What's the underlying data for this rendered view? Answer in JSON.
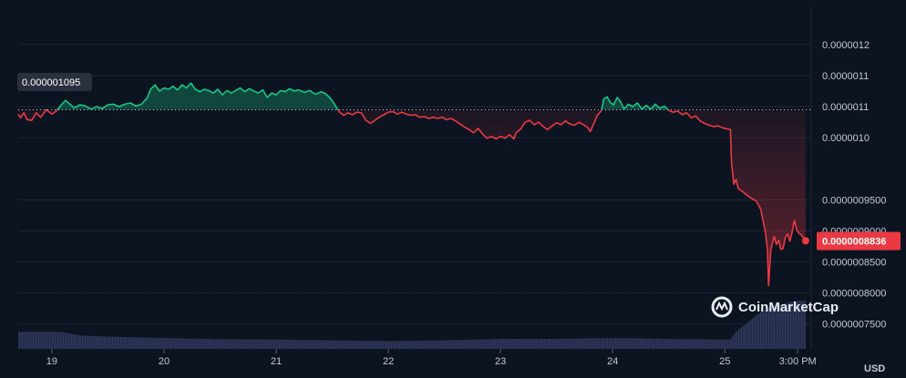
{
  "chart_data": {
    "type": "line",
    "unit": "USD",
    "brand": "CoinMarketCap",
    "reference_price_label": "0.000001095",
    "reference_price": 1.095e-06,
    "current_price_label": "0.0000008836",
    "current_price": 8.836e-07,
    "y_ticks": [
      "0.0000012",
      "0.0000011",
      "0.0000011",
      "0.0000010",
      "0.0000009500",
      "0.0000009000",
      "0.0000008500",
      "0.0000008000",
      "0.0000007500"
    ],
    "y_tick_values": [
      1.2e-06,
      1.15e-06,
      1.1e-06,
      1.05e-06,
      9.5e-07,
      9e-07,
      8.5e-07,
      8e-07,
      7.5e-07
    ],
    "x_ticks": [
      "19",
      "20",
      "21",
      "22",
      "23",
      "24",
      "25",
      "3:00 PM"
    ],
    "x_tick_positions": [
      0,
      1,
      2,
      3,
      4,
      5,
      6,
      6.65
    ],
    "xlim": [
      -0.3,
      6.77
    ],
    "ylim": [
      7.1e-07,
      1.26e-06
    ],
    "grid": true,
    "colors": {
      "up": "#16c784",
      "down": "#ea3943",
      "volume": "#353d63",
      "background": "#0d1421",
      "grid": "#1e2433"
    },
    "price_points": [
      [
        -0.3,
        1.088e-06
      ],
      [
        -0.28,
        1.082e-06
      ],
      [
        -0.25,
        1.09e-06
      ],
      [
        -0.22,
        1.079e-06
      ],
      [
        -0.18,
        1.078e-06
      ],
      [
        -0.14,
        1.09e-06
      ],
      [
        -0.1,
        1.083e-06
      ],
      [
        -0.05,
        1.095e-06
      ],
      [
        0.0,
        1.088e-06
      ],
      [
        0.04,
        1.093e-06
      ],
      [
        0.08,
        1.102e-06
      ],
      [
        0.12,
        1.11e-06
      ],
      [
        0.16,
        1.104e-06
      ],
      [
        0.2,
        1.098e-06
      ],
      [
        0.25,
        1.103e-06
      ],
      [
        0.3,
        1.101e-06
      ],
      [
        0.35,
        1.096e-06
      ],
      [
        0.4,
        1.1e-06
      ],
      [
        0.45,
        1.097e-06
      ],
      [
        0.5,
        1.103e-06
      ],
      [
        0.55,
        1.104e-06
      ],
      [
        0.6,
        1.1e-06
      ],
      [
        0.65,
        1.104e-06
      ],
      [
        0.7,
        1.106e-06
      ],
      [
        0.75,
        1.101e-06
      ],
      [
        0.8,
        1.104e-06
      ],
      [
        0.85,
        1.114e-06
      ],
      [
        0.88,
        1.128e-06
      ],
      [
        0.92,
        1.135e-06
      ],
      [
        0.96,
        1.125e-06
      ],
      [
        1.0,
        1.13e-06
      ],
      [
        1.04,
        1.128e-06
      ],
      [
        1.08,
        1.133e-06
      ],
      [
        1.12,
        1.127e-06
      ],
      [
        1.16,
        1.135e-06
      ],
      [
        1.2,
        1.13e-06
      ],
      [
        1.24,
        1.138e-06
      ],
      [
        1.28,
        1.128e-06
      ],
      [
        1.32,
        1.124e-06
      ],
      [
        1.36,
        1.128e-06
      ],
      [
        1.4,
        1.126e-06
      ],
      [
        1.44,
        1.122e-06
      ],
      [
        1.48,
        1.128e-06
      ],
      [
        1.52,
        1.119e-06
      ],
      [
        1.56,
        1.126e-06
      ],
      [
        1.6,
        1.122e-06
      ],
      [
        1.64,
        1.126e-06
      ],
      [
        1.68,
        1.13e-06
      ],
      [
        1.72,
        1.124e-06
      ],
      [
        1.76,
        1.129e-06
      ],
      [
        1.8,
        1.125e-06
      ],
      [
        1.84,
        1.122e-06
      ],
      [
        1.88,
        1.127e-06
      ],
      [
        1.92,
        1.115e-06
      ],
      [
        1.96,
        1.122e-06
      ],
      [
        2.0,
        1.119e-06
      ],
      [
        2.04,
        1.126e-06
      ],
      [
        2.08,
        1.124e-06
      ],
      [
        2.12,
        1.129e-06
      ],
      [
        2.16,
        1.125e-06
      ],
      [
        2.2,
        1.127e-06
      ],
      [
        2.25,
        1.123e-06
      ],
      [
        2.3,
        1.126e-06
      ],
      [
        2.35,
        1.12e-06
      ],
      [
        2.4,
        1.124e-06
      ],
      [
        2.44,
        1.121e-06
      ],
      [
        2.48,
        1.114e-06
      ],
      [
        2.52,
        1.104e-06
      ],
      [
        2.56,
        1.092e-06
      ],
      [
        2.6,
        1.086e-06
      ],
      [
        2.64,
        1.09e-06
      ],
      [
        2.68,
        1.087e-06
      ],
      [
        2.72,
        1.091e-06
      ],
      [
        2.76,
        1.09e-06
      ],
      [
        2.8,
        1.078e-06
      ],
      [
        2.84,
        1.073e-06
      ],
      [
        2.88,
        1.078e-06
      ],
      [
        2.92,
        1.083e-06
      ],
      [
        2.96,
        1.087e-06
      ],
      [
        3.0,
        1.091e-06
      ],
      [
        3.04,
        1.092e-06
      ],
      [
        3.08,
        1.088e-06
      ],
      [
        3.12,
        1.091e-06
      ],
      [
        3.16,
        1.088e-06
      ],
      [
        3.2,
        1.086e-06
      ],
      [
        3.24,
        1.087e-06
      ],
      [
        3.28,
        1.083e-06
      ],
      [
        3.32,
        1.084e-06
      ],
      [
        3.36,
        1.081e-06
      ],
      [
        3.4,
        1.083e-06
      ],
      [
        3.44,
        1.081e-06
      ],
      [
        3.48,
        1.083e-06
      ],
      [
        3.52,
        1.079e-06
      ],
      [
        3.56,
        1.081e-06
      ],
      [
        3.6,
        1.077e-06
      ],
      [
        3.64,
        1.072e-06
      ],
      [
        3.68,
        1.067e-06
      ],
      [
        3.72,
        1.063e-06
      ],
      [
        3.76,
        1.058e-06
      ],
      [
        3.8,
        1.065e-06
      ],
      [
        3.84,
        1.056e-06
      ],
      [
        3.88,
        1.049e-06
      ],
      [
        3.92,
        1.052e-06
      ],
      [
        3.96,
        1.048e-06
      ],
      [
        4.0,
        1.052e-06
      ],
      [
        4.04,
        1.049e-06
      ],
      [
        4.08,
        1.055e-06
      ],
      [
        4.12,
        1.048e-06
      ],
      [
        4.14,
        1.058e-06
      ],
      [
        4.18,
        1.064e-06
      ],
      [
        4.22,
        1.075e-06
      ],
      [
        4.26,
        1.078e-06
      ],
      [
        4.3,
        1.071e-06
      ],
      [
        4.34,
        1.075e-06
      ],
      [
        4.38,
        1.068e-06
      ],
      [
        4.42,
        1.063e-06
      ],
      [
        4.46,
        1.069e-06
      ],
      [
        4.5,
        1.074e-06
      ],
      [
        4.54,
        1.071e-06
      ],
      [
        4.58,
        1.077e-06
      ],
      [
        4.62,
        1.072e-06
      ],
      [
        4.66,
        1.07e-06
      ],
      [
        4.7,
        1.075e-06
      ],
      [
        4.74,
        1.071e-06
      ],
      [
        4.78,
        1.066e-06
      ],
      [
        4.8,
        1.06e-06
      ],
      [
        4.83,
        1.072e-06
      ],
      [
        4.86,
        1.085e-06
      ],
      [
        4.9,
        1.094e-06
      ],
      [
        4.92,
        1.112e-06
      ],
      [
        4.95,
        1.116e-06
      ],
      [
        4.98,
        1.106e-06
      ],
      [
        5.01,
        1.103e-06
      ],
      [
        5.04,
        1.115e-06
      ],
      [
        5.07,
        1.108e-06
      ],
      [
        5.1,
        1.096e-06
      ],
      [
        5.14,
        1.104e-06
      ],
      [
        5.18,
        1.1e-06
      ],
      [
        5.22,
        1.106e-06
      ],
      [
        5.26,
        1.096e-06
      ],
      [
        5.3,
        1.102e-06
      ],
      [
        5.34,
        1.096e-06
      ],
      [
        5.38,
        1.104e-06
      ],
      [
        5.42,
        1.097e-06
      ],
      [
        5.46,
        1.101e-06
      ],
      [
        5.5,
        1.094e-06
      ],
      [
        5.54,
        1.091e-06
      ],
      [
        5.58,
        1.093e-06
      ],
      [
        5.62,
        1.087e-06
      ],
      [
        5.66,
        1.09e-06
      ],
      [
        5.7,
        1.082e-06
      ],
      [
        5.74,
        1.085e-06
      ],
      [
        5.78,
        1.077e-06
      ],
      [
        5.82,
        1.073e-06
      ],
      [
        5.86,
        1.07e-06
      ],
      [
        5.9,
        1.068e-06
      ],
      [
        5.94,
        1.069e-06
      ],
      [
        5.98,
        1.066e-06
      ],
      [
        6.02,
        1.064e-06
      ],
      [
        6.05,
        1.063e-06
      ],
      [
        6.06,
        1.01e-06
      ],
      [
        6.08,
        9.75e-07
      ],
      [
        6.1,
        9.83e-07
      ],
      [
        6.12,
        9.68e-07
      ],
      [
        6.16,
        9.63e-07
      ],
      [
        6.2,
        9.57e-07
      ],
      [
        6.24,
        9.52e-07
      ],
      [
        6.28,
        9.48e-07
      ],
      [
        6.32,
        9.35e-07
      ],
      [
        6.34,
        9.17e-07
      ],
      [
        6.36,
        9e-07
      ],
      [
        6.38,
        8.7e-07
      ],
      [
        6.39,
        8.12e-07
      ],
      [
        6.41,
        8.7e-07
      ],
      [
        6.44,
        8.91e-07
      ],
      [
        6.46,
        8.78e-07
      ],
      [
        6.48,
        8.85e-07
      ],
      [
        6.5,
        8.7e-07
      ],
      [
        6.52,
        8.72e-07
      ],
      [
        6.54,
        8.9e-07
      ],
      [
        6.56,
        8.95e-07
      ],
      [
        6.58,
        8.83e-07
      ],
      [
        6.6,
        8.98e-07
      ],
      [
        6.62,
        9.17e-07
      ],
      [
        6.64,
        9.02e-07
      ],
      [
        6.66,
        8.96e-07
      ],
      [
        6.68,
        8.94e-07
      ],
      [
        6.7,
        8.88e-07
      ],
      [
        6.72,
        8.84e-07
      ]
    ],
    "volume_points": [
      [
        -0.3,
        0.92
      ],
      [
        0.0,
        0.92
      ],
      [
        0.1,
        0.9
      ],
      [
        0.25,
        0.72
      ],
      [
        0.5,
        0.66
      ],
      [
        1.0,
        0.58
      ],
      [
        1.5,
        0.52
      ],
      [
        2.0,
        0.5
      ],
      [
        2.5,
        0.46
      ],
      [
        3.0,
        0.42
      ],
      [
        3.5,
        0.46
      ],
      [
        4.0,
        0.54
      ],
      [
        4.5,
        0.54
      ],
      [
        5.0,
        0.58
      ],
      [
        5.5,
        0.54
      ],
      [
        6.0,
        0.5
      ],
      [
        6.05,
        0.52
      ],
      [
        6.1,
        0.92
      ],
      [
        6.2,
        1.4
      ],
      [
        6.3,
        1.9
      ],
      [
        6.4,
        2.25
      ],
      [
        6.5,
        2.4
      ],
      [
        6.6,
        2.55
      ],
      [
        6.72,
        2.6
      ]
    ]
  }
}
